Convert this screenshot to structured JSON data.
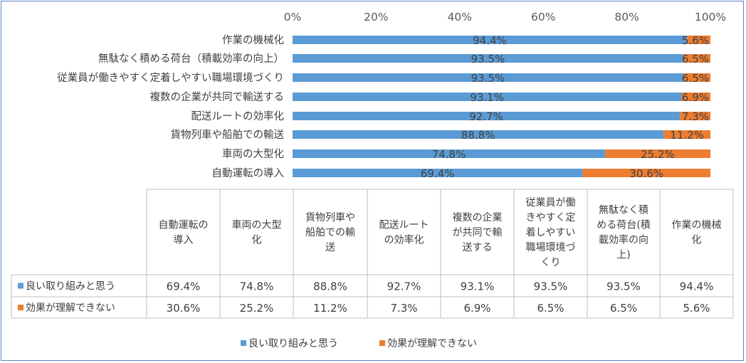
{
  "chart_data": {
    "type": "bar",
    "stacked": true,
    "orientation": "horizontal",
    "xlim": [
      0,
      100
    ],
    "x_ticks": [
      "0%",
      "20%",
      "40%",
      "60%",
      "80%",
      "100%"
    ],
    "grid": false,
    "legend_position": "bottom",
    "categories": [
      "自動運転の導入",
      "車両の大型化",
      "貨物列車や船舶での輸送",
      "配送ルートの効率化",
      "複数の企業が共同で輸送する",
      "従業員が働きやすく定着しやすい職場環境づくり",
      "無駄なく積める荷台（積載効率の向上）",
      "作業の機械化"
    ],
    "table_headers": [
      [
        "自動運転の",
        "導入"
      ],
      [
        "車両の大型",
        "化"
      ],
      [
        "貨物列車や",
        "船舶での輸",
        "送"
      ],
      [
        "配送ルート",
        "の効率化"
      ],
      [
        "複数の企業",
        "が共同で輸",
        "送する"
      ],
      [
        "従業員が働",
        "きやすく定",
        "着しやすい",
        "職場環境づ",
        "くり"
      ],
      [
        "無駄なく積",
        "める荷台(積",
        "載効率の向",
        "上)"
      ],
      [
        "作業の機械",
        "化"
      ]
    ],
    "series": [
      {
        "name": "良い取り組みと思う",
        "color": "#5b9bd5",
        "values": [
          69.4,
          74.8,
          88.8,
          92.7,
          93.1,
          93.5,
          93.5,
          94.4
        ],
        "labels": [
          "69.4%",
          "74.8%",
          "88.8%",
          "92.7%",
          "93.1%",
          "93.5%",
          "93.5%",
          "94.4%"
        ]
      },
      {
        "name": "効果が理解できない",
        "color": "#ed7d31",
        "values": [
          30.6,
          25.2,
          11.2,
          7.3,
          6.9,
          6.5,
          6.5,
          5.6
        ],
        "labels": [
          "30.6%",
          "25.2%",
          "11.2%",
          "7.3%",
          "6.9%",
          "6.5%",
          "6.5%",
          "5.6%"
        ]
      }
    ]
  }
}
